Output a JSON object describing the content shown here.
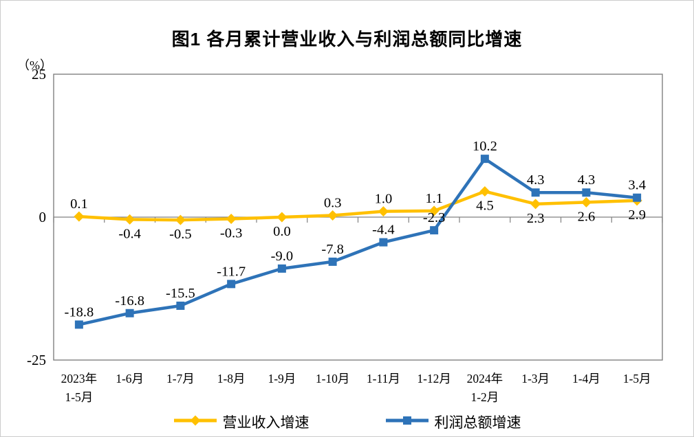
{
  "figure": {
    "title": "图1  各月累计营业收入与利润总额同比增速",
    "unit_label": "（%）"
  },
  "chart_data": {
    "type": "line",
    "categories": [
      "2023年\n1-5月",
      "1-6月",
      "1-7月",
      "1-8月",
      "1-9月",
      "1-10月",
      "1-11月",
      "1-12月",
      "2024年\n1-2月",
      "1-3月",
      "1-4月",
      "1-5月"
    ],
    "series": [
      {
        "name": "营业收入增速",
        "color": "#FFC000",
        "marker": "diamond",
        "values": [
          0.1,
          -0.4,
          -0.5,
          -0.3,
          0.0,
          0.3,
          1.0,
          1.1,
          4.5,
          2.3,
          2.6,
          2.9
        ],
        "label_side": [
          "above",
          "below",
          "below",
          "below",
          "below",
          "above",
          "above",
          "above",
          "below",
          "below",
          "below",
          "below"
        ]
      },
      {
        "name": "利润总额增速",
        "color": "#2E73B8",
        "marker": "square",
        "values": [
          -18.8,
          -16.8,
          -15.5,
          -11.7,
          -9.0,
          -7.8,
          -4.4,
          -2.3,
          10.2,
          4.3,
          4.3,
          3.4
        ],
        "label_side": [
          "above",
          "above",
          "above",
          "above",
          "above",
          "above",
          "above",
          "above",
          "above",
          "above",
          "above",
          "above"
        ]
      }
    ],
    "ylim": [
      -25,
      25
    ],
    "yticks": [
      25,
      0,
      -25
    ],
    "axis_color": "#808080",
    "grid": false,
    "legend_position": "bottom"
  }
}
